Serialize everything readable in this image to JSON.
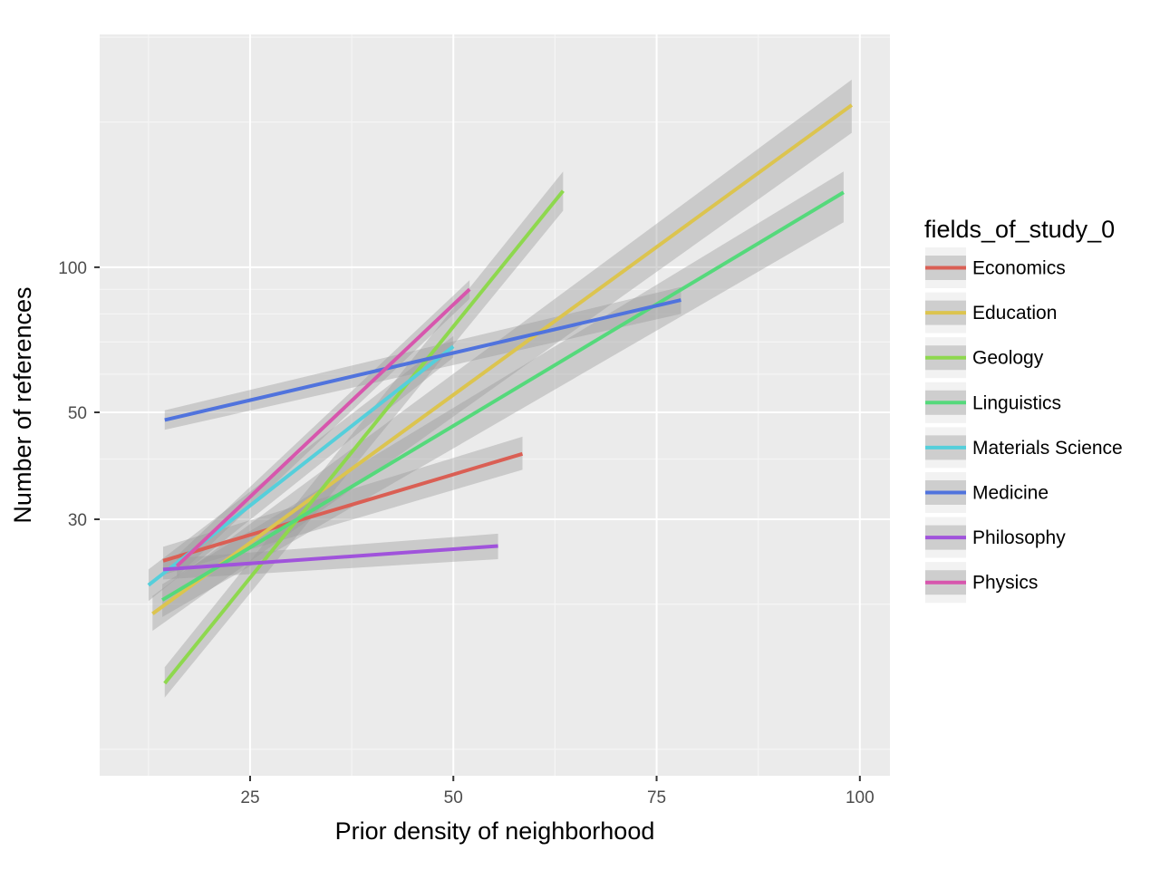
{
  "chart_data": {
    "type": "line",
    "xlabel": "Prior density of neighborhood",
    "ylabel": "Number of references",
    "xlim": [
      6.5,
      103.7
    ],
    "ylim_log10": [
      0.945,
      2.483
    ],
    "y_scale": "log10",
    "x_ticks": [
      25,
      50,
      75,
      100
    ],
    "y_ticks": [
      30,
      50,
      100
    ],
    "x_tick_labels": [
      "25",
      "50",
      "75",
      "100"
    ],
    "y_tick_labels": [
      "30",
      "50",
      "100"
    ],
    "grid": true,
    "legend": {
      "title": "fields_of_study_0",
      "position": "right"
    },
    "series": [
      {
        "name": "Economics",
        "color": "#da5f54",
        "x": [
          14.3,
          58.5
        ],
        "y": [
          24.6,
          41.0
        ],
        "upper": [
          26.3,
          44.5
        ],
        "lower": [
          23.0,
          38.0
        ]
      },
      {
        "name": "Education",
        "color": "#dcc44f",
        "x": [
          13.0,
          99.0
        ],
        "y": [
          19.1,
          217.0
        ],
        "upper": [
          20.8,
          245.0
        ],
        "lower": [
          17.6,
          190.0
        ]
      },
      {
        "name": "Geology",
        "color": "#8ed84e",
        "x": [
          14.5,
          63.5
        ],
        "y": [
          13.7,
          144.0
        ],
        "upper": [
          14.8,
          158.0
        ],
        "lower": [
          12.8,
          131.0
        ]
      },
      {
        "name": "Linguistics",
        "color": "#55d97b",
        "x": [
          14.2,
          98.0
        ],
        "y": [
          20.4,
          143.0
        ],
        "upper": [
          22.0,
          158.0
        ],
        "lower": [
          18.8,
          124.0
        ]
      },
      {
        "name": "Materials Science",
        "color": "#55cfdb",
        "x": [
          12.5,
          50.0
        ],
        "y": [
          21.9,
          68.5
        ],
        "upper": [
          23.6,
          72.0
        ],
        "lower": [
          20.3,
          65.0
        ]
      },
      {
        "name": "Medicine",
        "color": "#5073dd",
        "x": [
          14.5,
          78.0
        ],
        "y": [
          48.2,
          85.5
        ],
        "upper": [
          50.5,
          91.0
        ],
        "lower": [
          46.0,
          80.0
        ]
      },
      {
        "name": "Philosophy",
        "color": "#a053db",
        "x": [
          14.3,
          55.5
        ],
        "y": [
          23.6,
          26.4
        ],
        "upper": [
          24.8,
          28.0
        ],
        "lower": [
          22.5,
          24.8
        ]
      },
      {
        "name": "Physics",
        "color": "#d756ad",
        "x": [
          16.0,
          52.0
        ],
        "y": [
          24.0,
          90.0
        ],
        "upper": [
          25.2,
          94.0
        ],
        "lower": [
          22.8,
          86.0
        ]
      }
    ]
  }
}
